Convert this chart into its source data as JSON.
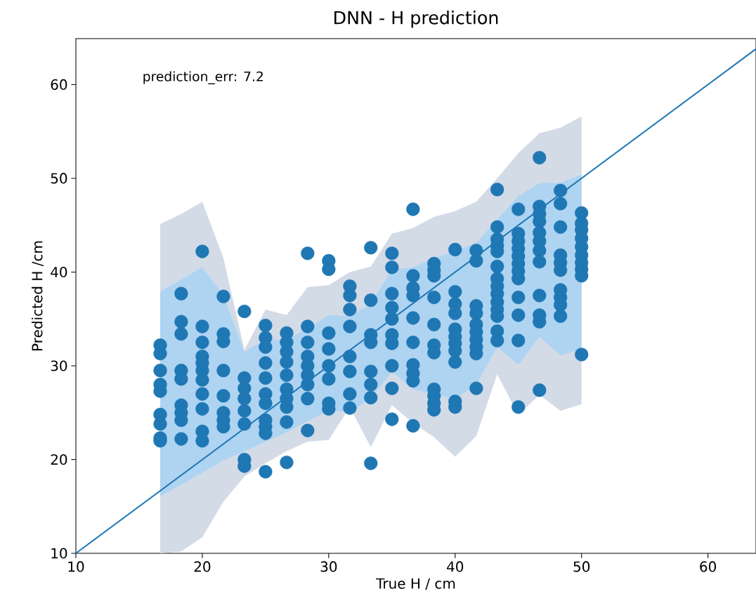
{
  "chart_data": {
    "type": "scatter",
    "title": "DNN - H prediction",
    "xlabel": "True H / cm",
    "ylabel": "Predicted H /cm",
    "annotations": [
      "prediction_err: 7.2"
    ],
    "xlim": [
      10,
      63.8
    ],
    "ylim": [
      10,
      64.9
    ],
    "xticks": [
      10,
      20,
      30,
      40,
      50,
      60
    ],
    "yticks": [
      10,
      20,
      30,
      40,
      50,
      60
    ],
    "grid": false,
    "series": [
      {
        "type": "line",
        "marker": "none",
        "color": "#d3dbe7",
        "x": [
          16.67,
          18.33,
          20,
          21.67,
          23.33,
          25,
          26.67,
          28.33,
          30,
          31.67,
          33.33,
          35,
          36.67,
          38.33,
          40,
          41.67,
          43.33,
          45,
          46.67,
          48.33,
          50
        ],
        "values": [
          null,
          null,
          null,
          null,
          null,
          null,
          null,
          null,
          null,
          null,
          null,
          null,
          null,
          null,
          null,
          null,
          null,
          null,
          null,
          null,
          null
        ],
        "upper": [
          45.1,
          46.2,
          47.5,
          41.5,
          31.7,
          36.0,
          35.4,
          38.4,
          38.6,
          40.0,
          40.6,
          44.1,
          44.7,
          45.9,
          46.5,
          47.5,
          50.0,
          52.7,
          54.8,
          55.4,
          56.6
        ],
        "lower": [
          10,
          10.2,
          11.7,
          15.5,
          18.2,
          19.6,
          20.9,
          21.9,
          22.1,
          25.6,
          21.3,
          25.8,
          23.9,
          22.4,
          20.3,
          22.5,
          29.1,
          24.8,
          26.9,
          25.2,
          25.9
        ]
      },
      {
        "type": "line",
        "marker": "none",
        "color": "#aed4f2",
        "x": [
          16.67,
          18.33,
          20,
          21.67,
          23.33,
          25,
          26.67,
          28.33,
          30,
          31.67,
          33.33,
          35,
          36.67,
          38.33,
          40,
          41.67,
          43.33,
          45,
          46.67,
          48.33,
          50
        ],
        "values": [
          null,
          null,
          null,
          null,
          null,
          null,
          null,
          null,
          null,
          null,
          null,
          null,
          null,
          null,
          null,
          null,
          null,
          null,
          null,
          null,
          null
        ],
        "upper": [
          37.9,
          39.2,
          40.5,
          37.5,
          31.5,
          32.8,
          32.8,
          34.0,
          35.4,
          35.3,
          36.6,
          40.3,
          40.5,
          41.5,
          42.2,
          43.1,
          45.6,
          48.1,
          49.5,
          49.5,
          50.4
        ],
        "lower": [
          16.1,
          17.3,
          18.6,
          19.9,
          20.9,
          21.9,
          22.9,
          24.1,
          25.2,
          25.1,
          26.5,
          29.4,
          27.5,
          26.9,
          26.5,
          28.0,
          32.0,
          30.1,
          33.1,
          31.1,
          31.8
        ]
      },
      {
        "type": "line",
        "color": "#1f77b4",
        "marker": "none",
        "x": [
          10,
          63.8
        ],
        "values": [
          10,
          63.8
        ]
      },
      {
        "color": "#1f77b4",
        "marker": "circle",
        "x": [
          16.67,
          16.67,
          16.67,
          16.67,
          16.67,
          16.67,
          16.67,
          16.67,
          16.67,
          18.33,
          18.33,
          18.33,
          18.33,
          18.33,
          18.33,
          18.33,
          18.33,
          18.33,
          20,
          20,
          20,
          20,
          20,
          20,
          20,
          20,
          20,
          20,
          20,
          21.67,
          21.67,
          21.67,
          21.67,
          21.67,
          21.67,
          21.67,
          21.67,
          23.33,
          23.33,
          23.33,
          23.33,
          23.33,
          23.33,
          23.33,
          23.33,
          25,
          25,
          25,
          25,
          25,
          25,
          25,
          25,
          25,
          25,
          25,
          26.67,
          26.67,
          26.67,
          26.67,
          26.67,
          26.67,
          26.67,
          26.67,
          26.67,
          26.67,
          28.33,
          28.33,
          28.33,
          28.33,
          28.33,
          28.33,
          28.33,
          28.33,
          28.33,
          30,
          30,
          30,
          30,
          30,
          30,
          30,
          30,
          31.67,
          31.67,
          31.67,
          31.67,
          31.67,
          31.67,
          31.67,
          31.67,
          33.33,
          33.33,
          33.33,
          33.33,
          33.33,
          33.33,
          33.33,
          33.33,
          35,
          35,
          35,
          35,
          35,
          35,
          35,
          35,
          35,
          35,
          36.67,
          36.67,
          36.67,
          36.67,
          36.67,
          36.67,
          36.67,
          36.67,
          36.67,
          36.67,
          38.33,
          38.33,
          38.33,
          38.33,
          38.33,
          38.33,
          38.33,
          38.33,
          38.33,
          38.33,
          38.33,
          40,
          40,
          40,
          40,
          40,
          40,
          40,
          40,
          40,
          40,
          40,
          41.67,
          41.67,
          41.67,
          41.67,
          41.67,
          41.67,
          41.67,
          41.67,
          41.67,
          41.67,
          43.33,
          43.33,
          43.33,
          43.33,
          43.33,
          43.33,
          43.33,
          43.33,
          43.33,
          43.33,
          43.33,
          43.33,
          43.33,
          43.33,
          45,
          45,
          45,
          45,
          45,
          45,
          45,
          45,
          45,
          45,
          45,
          45,
          46.67,
          46.67,
          46.67,
          46.67,
          46.67,
          46.67,
          46.67,
          46.67,
          46.67,
          46.67,
          46.67,
          46.67,
          48.33,
          48.33,
          48.33,
          48.33,
          48.33,
          48.33,
          48.33,
          48.33,
          48.33,
          48.33,
          50,
          50,
          50,
          50,
          50,
          50,
          50,
          50,
          50,
          50
        ],
        "values": [
          32.2,
          31.3,
          29.5,
          28.0,
          27.3,
          24.8,
          23.8,
          22.3,
          22.0,
          37.7,
          34.7,
          33.4,
          29.5,
          28.6,
          25.8,
          25.0,
          24.2,
          22.2,
          42.2,
          34.2,
          32.5,
          31.0,
          30.3,
          29.5,
          28.5,
          27.0,
          25.4,
          23.0,
          22.0,
          37.4,
          33.4,
          32.6,
          29.5,
          26.8,
          25.0,
          24.2,
          23.5,
          35.8,
          28.7,
          27.6,
          26.5,
          25.2,
          23.8,
          20.0,
          19.3,
          34.3,
          33.0,
          32.0,
          30.3,
          28.7,
          27.0,
          26.0,
          24.2,
          23.5,
          22.8,
          18.7,
          33.5,
          32.5,
          31.5,
          30.4,
          29.0,
          27.5,
          26.5,
          25.6,
          24.0,
          19.7,
          42.0,
          34.2,
          32.5,
          31.0,
          30.0,
          29.0,
          28.0,
          26.5,
          23.1,
          41.2,
          40.3,
          33.5,
          31.8,
          30.0,
          28.6,
          26.0,
          25.4,
          38.5,
          37.5,
          36.0,
          34.2,
          31.0,
          29.4,
          27.0,
          25.5,
          42.6,
          37.0,
          33.3,
          32.5,
          29.4,
          28.0,
          26.6,
          19.6,
          42.0,
          40.5,
          37.7,
          36.2,
          35.0,
          33.3,
          32.4,
          30.0,
          27.6,
          24.3,
          46.7,
          39.6,
          38.3,
          37.5,
          35.1,
          32.5,
          30.1,
          29.2,
          28.4,
          23.6,
          40.9,
          40.2,
          39.6,
          37.3,
          34.4,
          32.2,
          31.4,
          27.5,
          26.8,
          26.0,
          25.3,
          42.4,
          37.9,
          36.6,
          35.6,
          33.9,
          33.1,
          32.4,
          31.6,
          30.4,
          26.2,
          25.6,
          42.3,
          41.2,
          36.4,
          35.6,
          34.4,
          33.6,
          32.8,
          32.0,
          31.3,
          27.6,
          48.8,
          44.8,
          43.5,
          42.8,
          42.2,
          40.6,
          39.3,
          38.5,
          37.7,
          36.8,
          36.0,
          35.3,
          33.7,
          32.7,
          46.7,
          44.1,
          43.3,
          42.5,
          41.7,
          40.9,
          40.1,
          39.3,
          37.3,
          35.4,
          32.7,
          25.6,
          52.2,
          47.0,
          46.2,
          45.4,
          44.2,
          43.3,
          42.3,
          41.1,
          37.5,
          35.4,
          34.7,
          27.4,
          48.7,
          47.3,
          44.8,
          41.8,
          41.0,
          40.2,
          38.1,
          37.3,
          36.5,
          35.3,
          46.3,
          45.2,
          44.5,
          43.6,
          42.7,
          41.8,
          41.0,
          40.3,
          39.6,
          31.2
        ]
      }
    ]
  }
}
